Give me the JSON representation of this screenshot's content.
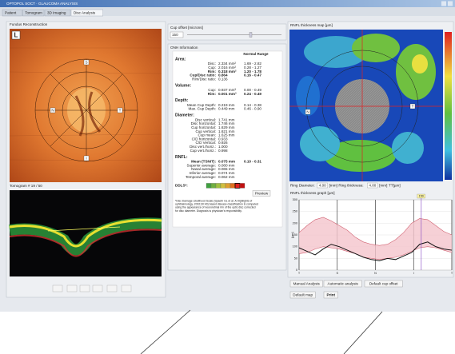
{
  "window": {
    "title": "OPTOPOL SOCT · GLAUCOMA ANALYSIS"
  },
  "tabs": [
    "Patient",
    "Tomogram",
    "3D Imaging",
    "Disc Analysis"
  ],
  "fundus": {
    "title": "Fundus Reconstruction",
    "eye": "L",
    "labels": [
      "S",
      "N",
      "T",
      "I"
    ]
  },
  "tomogram": {
    "title": "Tomogram # 19 / 50"
  },
  "cup_offset": {
    "title": "Cup offset [microns]",
    "value": "150"
  },
  "onh": {
    "title": "ONH Information",
    "normal_range": "Normal Range",
    "sections": [
      {
        "title": "Area:",
        "rows": [
          [
            "Disc:",
            "2.334 mm²",
            "1.69 - 2.82"
          ],
          [
            "Cup:",
            "2.016 mm²",
            "0.28 - 1.27"
          ],
          [
            "Rim:",
            "0.318 mm²",
            "1.20 - 1.78"
          ],
          [
            "Cup/Disc ratio:",
            "0.864",
            "0.16 - 0.47"
          ],
          [
            "Rim/Disc ratio:",
            "0.136",
            ""
          ]
        ]
      },
      {
        "title": "Volume:",
        "rows": [
          [
            "Cup:",
            "0.937 mm³",
            "0.00 - 0.49"
          ],
          [
            "Rim:",
            "0.001 mm³",
            "0.24 - 0.49"
          ]
        ]
      },
      {
        "title": "Depth:",
        "rows": [
          [
            "Mean Cup Depth:",
            "0.219 mm",
            "0.14 - 0.38"
          ],
          [
            "Max. Cup Depth:",
            "0.449 mm",
            "0.46 - 0.90"
          ]
        ]
      },
      {
        "title": "Diameter:",
        "rows": [
          [
            "Disc vertical:",
            "1.741 mm",
            ""
          ],
          [
            "Disc horizontal:",
            "1.746 mm",
            ""
          ],
          [
            "Cup horizontal:",
            "1.629 mm",
            ""
          ],
          [
            "Cup vertical:",
            "1.621 mm",
            ""
          ],
          [
            "Cup mean:",
            "1.625 mm",
            ""
          ],
          [
            "C/D horizontal:",
            "0.933",
            ""
          ],
          [
            "C/D Vertical:",
            "0.926",
            ""
          ],
          [
            "Disc vert./horiz.:",
            "1.000",
            ""
          ],
          [
            "Cup vert./horiz.:",
            "0.998",
            ""
          ]
        ]
      },
      {
        "title": "RNFL:",
        "rows": [
          [
            "Mean (TSNIT):",
            "0.075 mm",
            "0.10 - 0.31"
          ],
          [
            "Superior average:",
            "0.080 mm",
            ""
          ],
          [
            "Nasal average:",
            "0.065 mm",
            ""
          ],
          [
            "Inferior average:",
            "0.074 mm",
            ""
          ],
          [
            "Temporal average:",
            "0.062 mm",
            ""
          ]
        ]
      }
    ],
    "ddls": "DDLS*:",
    "preview": "Preview",
    "footnote": [
      "*Disc Damage Likelihood Scale (Spaeth GL et al. A Highlights of",
      "ophthalmology, 2002;30:40) based disease classification is computed",
      "using the appearance of neuroretinal rim of the optic disc corrected",
      "for disc diameter. Diagnosis is physician's responsibility."
    ]
  },
  "rnfl_map": {
    "title": "RNFL thickness map [µm]",
    "labels": [
      "N",
      "T"
    ],
    "controls": [
      "Ring Diameter:",
      "4.00",
      "[mm]",
      "Ring thickness:",
      "4.00",
      "[mm]",
      "TT[µm]"
    ]
  },
  "rnfl_graph": {
    "title": "RNFL thickness graph [µm]",
    "y_label": "[µm]",
    "ylim": [
      0,
      300
    ],
    "yticks": [
      0,
      50,
      100,
      150,
      200,
      250,
      300
    ],
    "xlabels": [
      "T",
      "S",
      "N",
      "I",
      "T"
    ],
    "marker": "150",
    "thickness": [
      95,
      80,
      65,
      90,
      110,
      100,
      85,
      70,
      55,
      45,
      40,
      50,
      45,
      60,
      75,
      110,
      120,
      100,
      90,
      85
    ],
    "normal_high": [
      160,
      190,
      215,
      225,
      210,
      190,
      170,
      140,
      120,
      110,
      105,
      110,
      130,
      160,
      200,
      220,
      215,
      190,
      165,
      150
    ],
    "normal_low": [
      70,
      75,
      90,
      100,
      95,
      90,
      80,
      70,
      55,
      50,
      45,
      50,
      55,
      65,
      80,
      95,
      100,
      95,
      85,
      75
    ]
  },
  "buttons": [
    "Manual Analysis",
    "Automatic analysis",
    "Default cup offset",
    "Default map",
    "Print"
  ]
}
